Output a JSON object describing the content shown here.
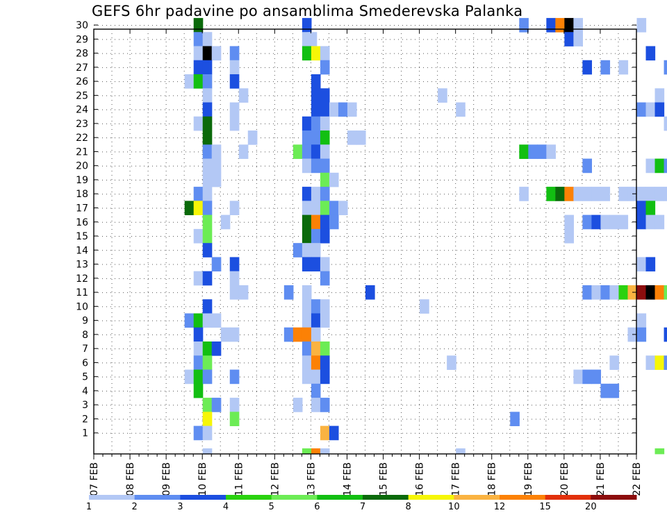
{
  "chart_data": {
    "type": "heatmap",
    "title": "GEFS 6hr padavine po ansamblima Smederevska Palanka",
    "xlabel": "",
    "ylabel": "",
    "x_tick_labels": [
      "07 FEB",
      "08 FEB",
      "09 FEB",
      "10 FEB",
      "11 FEB",
      "12 FEB",
      "13 FEB",
      "14 FEB",
      "15 FEB",
      "16 FEB",
      "17 FEB",
      "18 FEB",
      "19 FEB",
      "20 FEB",
      "21 FEB",
      "22 FEB"
    ],
    "y_tick_labels": [
      "1",
      "2",
      "3",
      "4",
      "5",
      "6",
      "7",
      "8",
      "9",
      "10",
      "11",
      "12",
      "13",
      "14",
      "15",
      "16",
      "17",
      "18",
      "19",
      "20",
      "21",
      "22",
      "23",
      "24",
      "25",
      "26",
      "27",
      "28",
      "29",
      "30"
    ],
    "grid": true,
    "colorbar": {
      "boundaries": [
        "1",
        "2",
        "3",
        "4",
        "5",
        "6",
        "7",
        "8",
        "10",
        "12",
        "15",
        "20"
      ],
      "colors": [
        "#b3c8f5",
        "#5f8df1",
        "#1c4fe0",
        "#2ad20f",
        "#6cec55",
        "#12bf12",
        "#0b6a0b",
        "#f6f607",
        "#fab341",
        "#fc8105",
        "#e2300b",
        "#8c0d0d"
      ]
    },
    "values_note_units": "mm per 6h, color bins",
    "series": [
      {
        "member": "30",
        "cells": [
          [
            5.5,
            7
          ],
          [
            11.5,
            3
          ],
          [
            23.5,
            2
          ],
          [
            25,
            3
          ],
          [
            25.5,
            10
          ],
          [
            26,
            15
          ],
          [
            26.5,
            1
          ],
          [
            30,
            1
          ]
        ]
      },
      {
        "member": "29",
        "cells": [
          [
            5.5,
            2
          ],
          [
            6,
            1
          ],
          [
            11.5,
            1
          ],
          [
            11.8,
            1
          ],
          [
            26,
            3
          ],
          [
            26.5,
            1
          ]
        ]
      },
      {
        "member": "28",
        "cells": [
          [
            5.5,
            1
          ],
          [
            6,
            15
          ],
          [
            6.5,
            1
          ],
          [
            7.5,
            2
          ],
          [
            11.5,
            6
          ],
          [
            12,
            8
          ],
          [
            12.5,
            1
          ],
          [
            30.5,
            3
          ]
        ]
      },
      {
        "member": "27",
        "cells": [
          [
            5.5,
            3
          ],
          [
            6,
            3
          ],
          [
            7.5,
            1
          ],
          [
            12.5,
            2
          ],
          [
            27,
            3
          ],
          [
            28,
            2
          ],
          [
            29,
            1
          ],
          [
            31.5,
            2
          ],
          [
            32,
            2
          ],
          [
            32.5,
            12
          ],
          [
            33,
            7
          ],
          [
            33.5,
            5
          ],
          [
            34,
            3
          ],
          [
            34.5,
            1
          ]
        ]
      },
      {
        "member": "26",
        "cells": [
          [
            5,
            1
          ],
          [
            5.5,
            6
          ],
          [
            6,
            2
          ],
          [
            7.5,
            3
          ],
          [
            12,
            3
          ]
        ]
      },
      {
        "member": "25",
        "cells": [
          [
            6,
            1
          ],
          [
            8,
            1
          ],
          [
            12,
            3
          ],
          [
            12.5,
            3
          ],
          [
            19,
            1
          ],
          [
            31,
            1
          ]
        ]
      },
      {
        "member": "24",
        "cells": [
          [
            6,
            3
          ],
          [
            7.5,
            1
          ],
          [
            12,
            3
          ],
          [
            12.5,
            3
          ],
          [
            13,
            1
          ],
          [
            13.5,
            2
          ],
          [
            14,
            1
          ],
          [
            20,
            1
          ],
          [
            30,
            2
          ],
          [
            30.5,
            1
          ],
          [
            31,
            3
          ],
          [
            33.5,
            2
          ]
        ]
      },
      {
        "member": "23",
        "cells": [
          [
            5.5,
            1
          ],
          [
            6,
            7
          ],
          [
            7.5,
            1
          ],
          [
            11.5,
            3
          ],
          [
            12,
            2
          ],
          [
            12.5,
            1
          ],
          [
            31.5,
            1
          ],
          [
            33.5,
            1
          ],
          [
            34,
            2
          ],
          [
            34.5,
            1
          ]
        ]
      },
      {
        "member": "22",
        "cells": [
          [
            6,
            7
          ],
          [
            8.5,
            1
          ],
          [
            11.5,
            2
          ],
          [
            12,
            2
          ],
          [
            12.5,
            6
          ],
          [
            14,
            1
          ],
          [
            14.5,
            1
          ],
          [
            32.5,
            1
          ]
        ]
      },
      {
        "member": "21",
        "cells": [
          [
            6,
            2
          ],
          [
            6.5,
            1
          ],
          [
            8,
            1
          ],
          [
            11,
            5
          ],
          [
            11.5,
            2
          ],
          [
            12,
            3
          ],
          [
            12.5,
            1
          ],
          [
            23.5,
            6
          ],
          [
            24,
            2
          ],
          [
            24.5,
            2
          ],
          [
            25,
            1
          ],
          [
            35,
            1
          ]
        ]
      },
      {
        "member": "20",
        "cells": [
          [
            6,
            1
          ],
          [
            6.5,
            1
          ],
          [
            11.5,
            1
          ],
          [
            12,
            2
          ],
          [
            12.5,
            2
          ],
          [
            27,
            2
          ],
          [
            30.5,
            1
          ],
          [
            31,
            6
          ],
          [
            31.5,
            2
          ],
          [
            32,
            3
          ],
          [
            32.5,
            3
          ],
          [
            33,
            5
          ],
          [
            33.5,
            3
          ],
          [
            34,
            1
          ]
        ]
      },
      {
        "member": "19",
        "cells": [
          [
            6,
            1
          ],
          [
            6.5,
            1
          ],
          [
            12.5,
            5
          ],
          [
            13,
            1
          ]
        ]
      },
      {
        "member": "18",
        "cells": [
          [
            5.5,
            2
          ],
          [
            6,
            1
          ],
          [
            11.5,
            3
          ],
          [
            12,
            1
          ],
          [
            12.5,
            2
          ],
          [
            23.5,
            1
          ],
          [
            25,
            6
          ],
          [
            25.5,
            7
          ],
          [
            26,
            10
          ],
          [
            26.5,
            1
          ],
          [
            27,
            1
          ],
          [
            27.5,
            1
          ],
          [
            28,
            1
          ],
          [
            29,
            1
          ],
          [
            29.5,
            1
          ],
          [
            30,
            1
          ],
          [
            30.5,
            1
          ],
          [
            31,
            1
          ],
          [
            31.5,
            1
          ]
        ]
      },
      {
        "member": "17",
        "cells": [
          [
            5,
            7
          ],
          [
            5.5,
            8
          ],
          [
            6,
            2
          ],
          [
            7.5,
            1
          ],
          [
            11.5,
            1
          ],
          [
            12,
            1
          ],
          [
            12.5,
            5
          ],
          [
            13,
            2
          ],
          [
            13.5,
            1
          ],
          [
            30,
            3
          ],
          [
            30.5,
            6
          ]
        ]
      },
      {
        "member": "16",
        "cells": [
          [
            6,
            5
          ],
          [
            7,
            1
          ],
          [
            11.5,
            7
          ],
          [
            12,
            10
          ],
          [
            12.5,
            3
          ],
          [
            13,
            2
          ],
          [
            26,
            1
          ],
          [
            27,
            2
          ],
          [
            27.5,
            3
          ],
          [
            28,
            1
          ],
          [
            28.5,
            1
          ],
          [
            29,
            1
          ],
          [
            30,
            3
          ],
          [
            30.5,
            1
          ],
          [
            31,
            1
          ],
          [
            33,
            7
          ],
          [
            33.5,
            5
          ],
          [
            34,
            2
          ],
          [
            34.5,
            1
          ],
          [
            35,
            1
          ]
        ]
      },
      {
        "member": "15",
        "cells": [
          [
            5.5,
            1
          ],
          [
            6,
            5
          ],
          [
            11.5,
            7
          ],
          [
            12,
            2
          ],
          [
            12.5,
            3
          ],
          [
            26,
            1
          ],
          [
            34,
            3
          ]
        ]
      },
      {
        "member": "14",
        "cells": [
          [
            6,
            3
          ],
          [
            11,
            2
          ],
          [
            11.5,
            1
          ],
          [
            12,
            1
          ],
          [
            34,
            3
          ]
        ]
      },
      {
        "member": "13",
        "cells": [
          [
            6.5,
            2
          ],
          [
            7.5,
            3
          ],
          [
            11.5,
            3
          ],
          [
            12,
            3
          ],
          [
            12.5,
            1
          ],
          [
            30,
            1
          ],
          [
            30.5,
            3
          ]
        ]
      },
      {
        "member": "12",
        "cells": [
          [
            5.5,
            1
          ],
          [
            6,
            3
          ],
          [
            7.5,
            1
          ],
          [
            12.5,
            2
          ],
          [
            33,
            3
          ],
          [
            33.5,
            7
          ]
        ]
      },
      {
        "member": "11",
        "cells": [
          [
            7.5,
            1
          ],
          [
            8,
            1
          ],
          [
            10.5,
            2
          ],
          [
            11.5,
            1
          ],
          [
            15,
            3
          ],
          [
            27,
            2
          ],
          [
            27.5,
            1
          ],
          [
            28,
            2
          ],
          [
            28.5,
            1
          ],
          [
            29,
            4
          ],
          [
            29.5,
            9
          ],
          [
            30,
            12
          ],
          [
            30.5,
            15
          ],
          [
            31,
            10
          ],
          [
            31.5,
            5
          ],
          [
            32,
            5
          ],
          [
            32.5,
            5
          ],
          [
            33,
            1
          ],
          [
            33.5,
            3
          ]
        ]
      },
      {
        "member": "10",
        "cells": [
          [
            6,
            3
          ],
          [
            11.5,
            1
          ],
          [
            12,
            2
          ],
          [
            12.5,
            1
          ],
          [
            18,
            1
          ]
        ]
      },
      {
        "member": "9",
        "cells": [
          [
            5,
            2
          ],
          [
            5.5,
            6
          ],
          [
            6,
            1
          ],
          [
            6.5,
            1
          ],
          [
            11.5,
            1
          ],
          [
            12,
            3
          ],
          [
            12.5,
            1
          ],
          [
            30,
            1
          ]
        ]
      },
      {
        "member": "8",
        "cells": [
          [
            5.5,
            3
          ],
          [
            7,
            1
          ],
          [
            7.5,
            1
          ],
          [
            10.5,
            2
          ],
          [
            11,
            10
          ],
          [
            11.5,
            10
          ],
          [
            12,
            1
          ],
          [
            29.5,
            1
          ],
          [
            30,
            2
          ],
          [
            31.5,
            3
          ],
          [
            32,
            1
          ]
        ]
      },
      {
        "member": "7",
        "cells": [
          [
            5.5,
            1
          ],
          [
            6,
            6
          ],
          [
            6.5,
            3
          ],
          [
            11.5,
            2
          ],
          [
            12,
            9
          ],
          [
            12.5,
            5
          ]
        ]
      },
      {
        "member": "6",
        "cells": [
          [
            5.5,
            2
          ],
          [
            6,
            5
          ],
          [
            11.5,
            1
          ],
          [
            12,
            10
          ],
          [
            12.5,
            3
          ],
          [
            19.5,
            1
          ],
          [
            28.5,
            1
          ],
          [
            30.5,
            1
          ],
          [
            31,
            8
          ],
          [
            31.5,
            2
          ],
          [
            35,
            2
          ]
        ]
      },
      {
        "member": "5",
        "cells": [
          [
            5,
            1
          ],
          [
            5.5,
            6
          ],
          [
            6,
            2
          ],
          [
            7.5,
            2
          ],
          [
            11.5,
            1
          ],
          [
            12,
            1
          ],
          [
            12.5,
            3
          ],
          [
            26.5,
            1
          ],
          [
            27,
            2
          ],
          [
            27.5,
            2
          ],
          [
            34.5,
            1
          ],
          [
            35,
            20
          ]
        ]
      },
      {
        "member": "4",
        "cells": [
          [
            5.5,
            6
          ],
          [
            12,
            2
          ],
          [
            28,
            2
          ],
          [
            28.5,
            2
          ],
          [
            32,
            6
          ]
        ]
      },
      {
        "member": "3",
        "cells": [
          [
            6,
            5
          ],
          [
            6.5,
            2
          ],
          [
            7.5,
            1
          ],
          [
            11,
            1
          ],
          [
            12,
            1
          ],
          [
            12.5,
            2
          ]
        ]
      },
      {
        "member": "2",
        "cells": [
          [
            6,
            8
          ],
          [
            7.5,
            5
          ],
          [
            23,
            2
          ],
          [
            34.5,
            1
          ],
          [
            35,
            1
          ]
        ]
      },
      {
        "member": "1",
        "cells": [
          [
            5.5,
            2
          ],
          [
            6,
            1
          ],
          [
            12.5,
            9
          ],
          [
            13,
            3
          ],
          [
            33,
            3
          ]
        ]
      },
      {
        "member": "0",
        "cells": [
          [
            6,
            1
          ],
          [
            11.5,
            5
          ],
          [
            12,
            10
          ],
          [
            12.5,
            1
          ],
          [
            20,
            1
          ],
          [
            31,
            5
          ],
          [
            32,
            1
          ],
          [
            33,
            1
          ],
          [
            33.5,
            1
          ],
          [
            34,
            10
          ],
          [
            34.5,
            3
          ],
          [
            35,
            1
          ]
        ]
      }
    ]
  }
}
